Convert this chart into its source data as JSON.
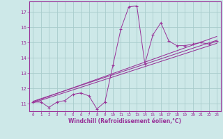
{
  "xlabel": "Windchill (Refroidissement éolien,°C)",
  "bg_color": "#cde8e8",
  "grid_color": "#a8cccc",
  "line_color": "#993399",
  "spine_color": "#993399",
  "xlim": [
    -0.5,
    23.5
  ],
  "ylim": [
    10.5,
    17.7
  ],
  "yticks": [
    11,
    12,
    13,
    14,
    15,
    16,
    17
  ],
  "xticks": [
    0,
    1,
    2,
    3,
    4,
    5,
    6,
    7,
    8,
    9,
    10,
    11,
    12,
    13,
    14,
    15,
    16,
    17,
    18,
    19,
    20,
    21,
    22,
    23
  ],
  "scatter_x": [
    0,
    1,
    2,
    3,
    4,
    5,
    6,
    7,
    8,
    9,
    10,
    11,
    12,
    13,
    14,
    15,
    16,
    17,
    18,
    19,
    20,
    21,
    22,
    23
  ],
  "scatter_y": [
    11.1,
    11.1,
    10.75,
    11.1,
    11.2,
    11.6,
    11.7,
    11.5,
    10.65,
    11.1,
    13.5,
    15.9,
    17.35,
    17.4,
    13.6,
    15.5,
    16.3,
    15.1,
    14.8,
    14.8,
    14.9,
    15.0,
    14.9,
    15.1
  ],
  "reg_lines": [
    {
      "x": [
        0,
        23
      ],
      "y": [
        11.05,
        14.95
      ]
    },
    {
      "x": [
        0,
        23
      ],
      "y": [
        11.15,
        15.15
      ]
    },
    {
      "x": [
        0,
        23
      ],
      "y": [
        11.1,
        15.4
      ]
    }
  ]
}
